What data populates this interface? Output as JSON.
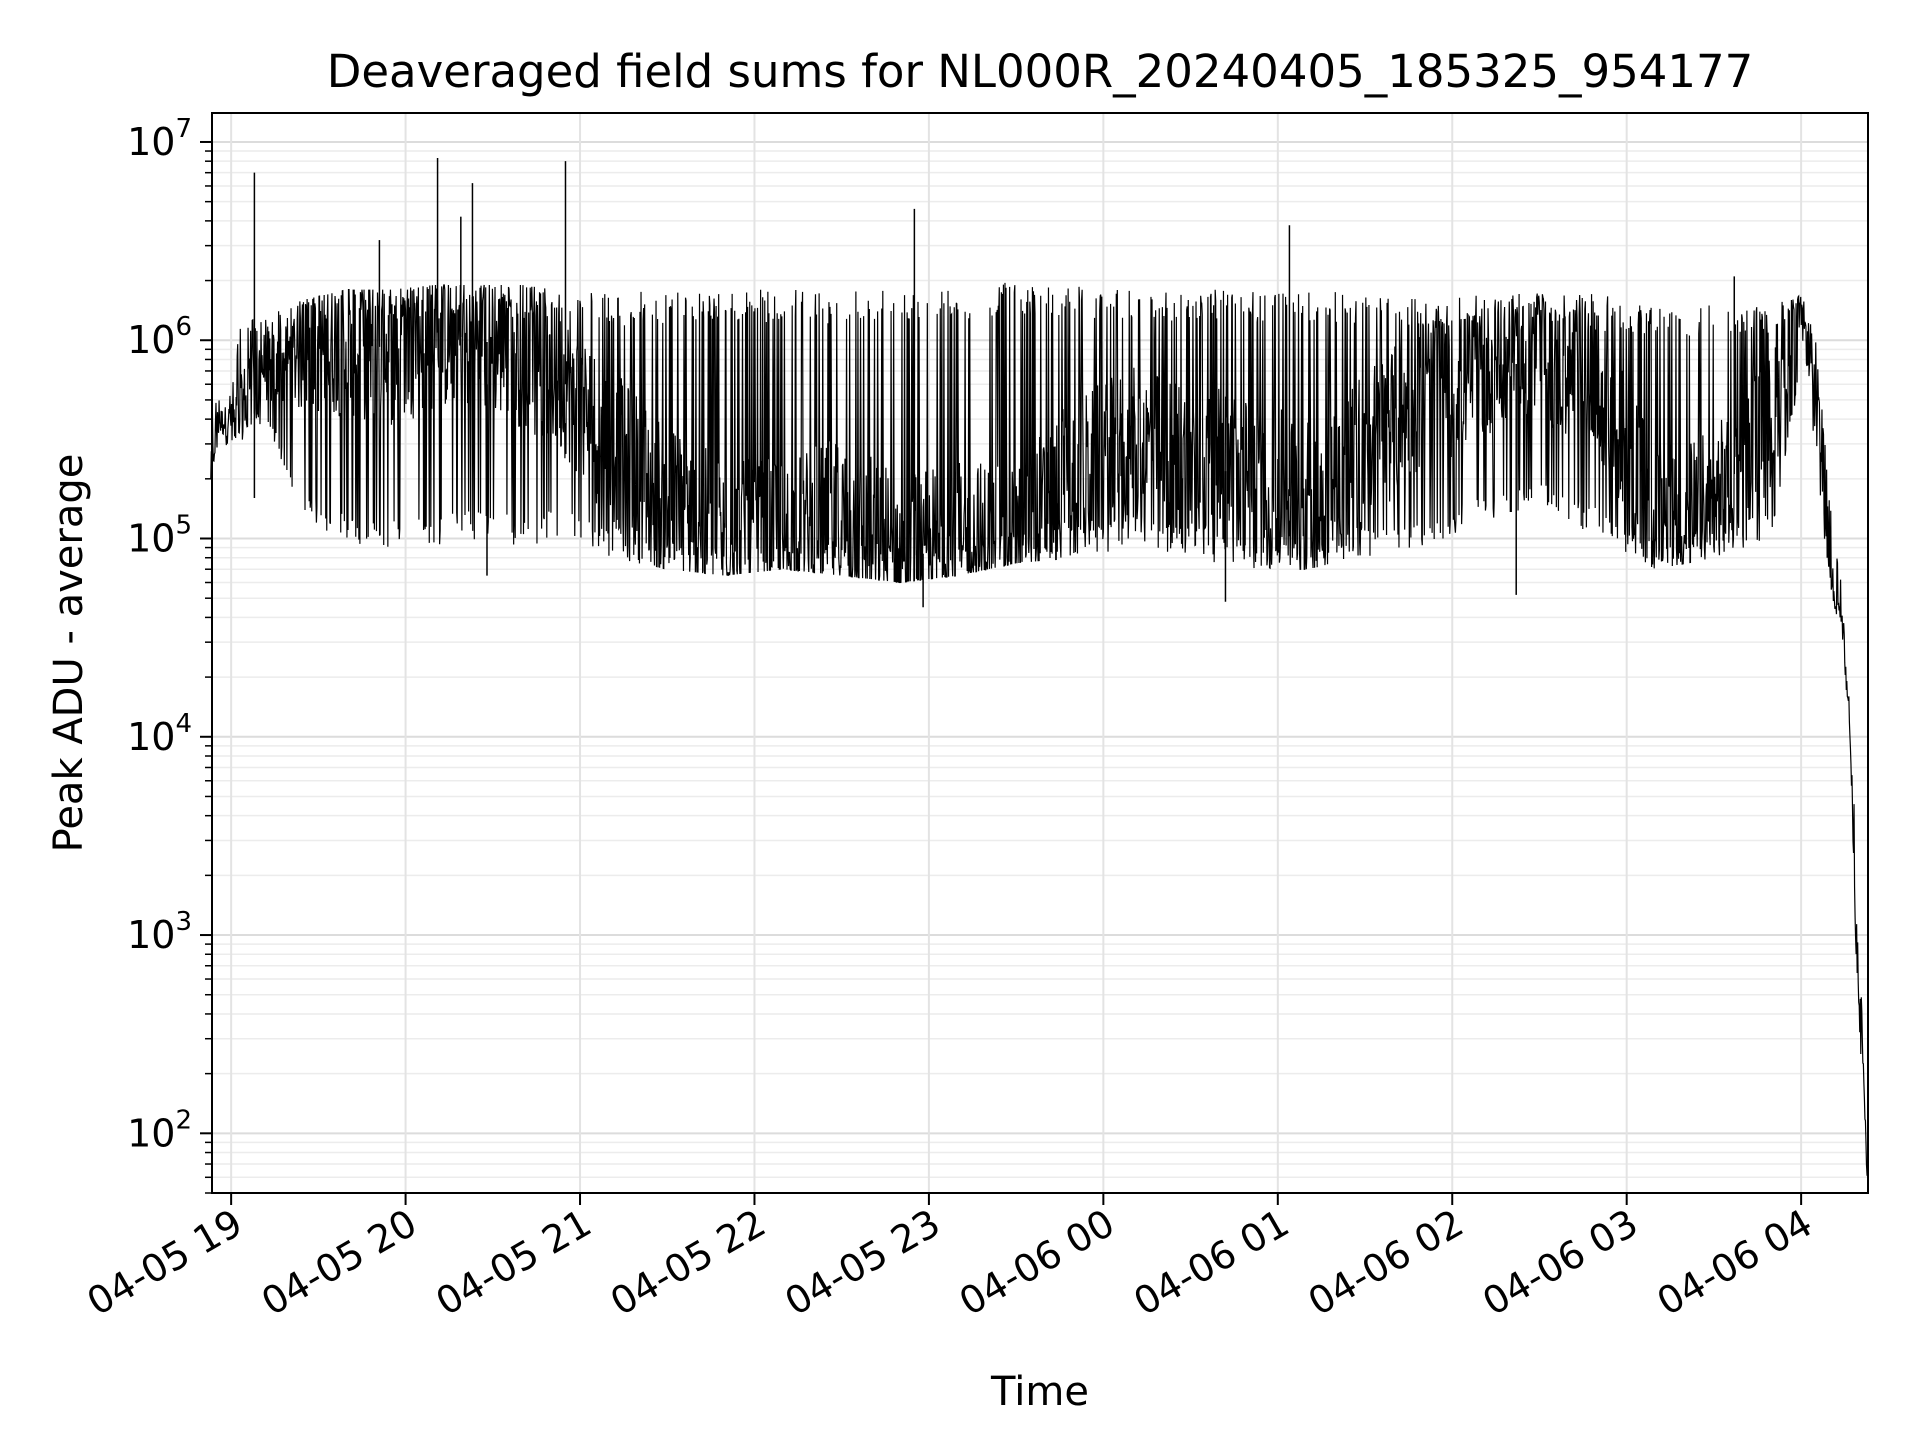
{
  "chart_data": {
    "type": "line",
    "title": "Deaveraged field sums for NL000R_20240405_185325_954177",
    "xlabel": "Time",
    "ylabel": "Peak ADU - average",
    "yscale": "log",
    "ylim": [
      50,
      14000000
    ],
    "xlim": [
      "2024-04-05 18:53:25",
      "2024-04-06 04:23:00"
    ],
    "grid": "on (major and minor, both axes)",
    "line_color": "#000000",
    "x_ticks": [
      {
        "t": "2024-04-05 19:00",
        "label": "04-05 19"
      },
      {
        "t": "2024-04-05 20:00",
        "label": "04-05 20"
      },
      {
        "t": "2024-04-05 21:00",
        "label": "04-05 21"
      },
      {
        "t": "2024-04-05 22:00",
        "label": "04-05 22"
      },
      {
        "t": "2024-04-05 23:00",
        "label": "04-05 23"
      },
      {
        "t": "2024-04-06 00:00",
        "label": "04-06 00"
      },
      {
        "t": "2024-04-06 01:00",
        "label": "04-06 01"
      },
      {
        "t": "2024-04-06 02:00",
        "label": "04-06 02"
      },
      {
        "t": "2024-04-06 03:00",
        "label": "04-06 03"
      },
      {
        "t": "2024-04-06 04:00",
        "label": "04-06 04"
      }
    ],
    "y_ticks": [
      {
        "value": 100,
        "base": "10",
        "exp": "2"
      },
      {
        "value": 1000,
        "base": "10",
        "exp": "3"
      },
      {
        "value": 10000,
        "base": "10",
        "exp": "4"
      },
      {
        "value": 100000,
        "base": "10",
        "exp": "5"
      },
      {
        "value": 1000000,
        "base": "10",
        "exp": "6"
      },
      {
        "value": 10000000,
        "base": "10",
        "exp": "7"
      }
    ],
    "series": [
      {
        "x": [
          "2024-04-05 18:53",
          "2024-04-05 18:55",
          "2024-04-05 19:00",
          "2024-04-05 19:03",
          "2024-04-05 19:08",
          "2024-04-05 19:15",
          "2024-04-05 19:25",
          "2024-04-05 19:40",
          "2024-04-05 19:55",
          "2024-04-05 20:10",
          "2024-04-05 20:25",
          "2024-04-05 20:40",
          "2024-04-05 20:55",
          "2024-04-05 21:10",
          "2024-04-05 21:30",
          "2024-04-05 21:50",
          "2024-04-05 22:10",
          "2024-04-05 22:30",
          "2024-04-05 22:50",
          "2024-04-05 23:10",
          "2024-04-05 23:30",
          "2024-04-05 23:50",
          "2024-04-06 00:10",
          "2024-04-06 00:30",
          "2024-04-06 00:50",
          "2024-04-06 01:10",
          "2024-04-06 01:30",
          "2024-04-06 01:50",
          "2024-04-06 02:10",
          "2024-04-06 02:30",
          "2024-04-06 02:50",
          "2024-04-06 03:10",
          "2024-04-06 03:30",
          "2024-04-06 03:50",
          "2024-04-06 04:00",
          "2024-04-06 04:05",
          "2024-04-06 04:08",
          "2024-04-06 04:11",
          "2024-04-06 04:14",
          "2024-04-06 04:17",
          "2024-04-06 04:19",
          "2024-04-06 04:21",
          "2024-04-06 04:22",
          "2024-04-06 04:22:50"
        ],
        "y": [
          200000,
          380000,
          400000,
          420000,
          800000,
          700000,
          900000,
          1000000,
          900000,
          1100000,
          1000000,
          900000,
          600000,
          300000,
          150000,
          90000,
          100000,
          120000,
          80000,
          90000,
          100000,
          200000,
          300000,
          250000,
          200000,
          150000,
          300000,
          500000,
          700000,
          800000,
          600000,
          120000,
          150000,
          400000,
          1400000,
          600000,
          150000,
          60000,
          45000,
          10000,
          1000,
          250,
          120,
          60
        ],
        "band_low": [
          200000,
          280000,
          300000,
          300000,
          400000,
          300000,
          130000,
          90000,
          90000,
          90000,
          100000,
          90000,
          100000,
          80000,
          70000,
          65000,
          70000,
          65000,
          60000,
          65000,
          75000,
          80000,
          90000,
          80000,
          70000,
          70000,
          80000,
          90000,
          120000,
          150000,
          100000,
          70000,
          80000,
          100000,
          700000,
          300000,
          90000,
          45000,
          35000,
          8000,
          700,
          180,
          90,
          55
        ],
        "band_high": [
          500000,
          500000,
          550000,
          1200000,
          1300000,
          1400000,
          1600000,
          1800000,
          1800000,
          1900000,
          1900000,
          1900000,
          1800000,
          1700000,
          1800000,
          1800000,
          1800000,
          1800000,
          1900000,
          1800000,
          2000000,
          1900000,
          1800000,
          1800000,
          1800000,
          1800000,
          1700000,
          1600000,
          1700000,
          1800000,
          1700000,
          1500000,
          1500000,
          1500000,
          1700000,
          1100000,
          350000,
          100000,
          60000,
          15000,
          2500,
          400,
          150,
          70
        ],
        "spikes": [
          {
            "t": "2024-04-05 19:08",
            "value": 7000000
          },
          {
            "t": "2024-04-05 19:51",
            "value": 3200000
          },
          {
            "t": "2024-04-05 20:11",
            "value": 8300000
          },
          {
            "t": "2024-04-05 20:19",
            "value": 4200000
          },
          {
            "t": "2024-04-05 20:23",
            "value": 6200000
          },
          {
            "t": "2024-04-05 20:55",
            "value": 8000000
          },
          {
            "t": "2024-04-05 22:55",
            "value": 4600000
          },
          {
            "t": "2024-04-06 01:04",
            "value": 3800000
          },
          {
            "t": "2024-04-06 03:37",
            "value": 2100000
          }
        ],
        "dips": [
          {
            "t": "2024-04-05 19:08",
            "value": 160000
          },
          {
            "t": "2024-04-05 20:28",
            "value": 65000
          },
          {
            "t": "2024-04-05 22:58",
            "value": 45000
          },
          {
            "t": "2024-04-06 00:42",
            "value": 48000
          },
          {
            "t": "2024-04-06 02:22",
            "value": 52000
          }
        ]
      }
    ]
  }
}
